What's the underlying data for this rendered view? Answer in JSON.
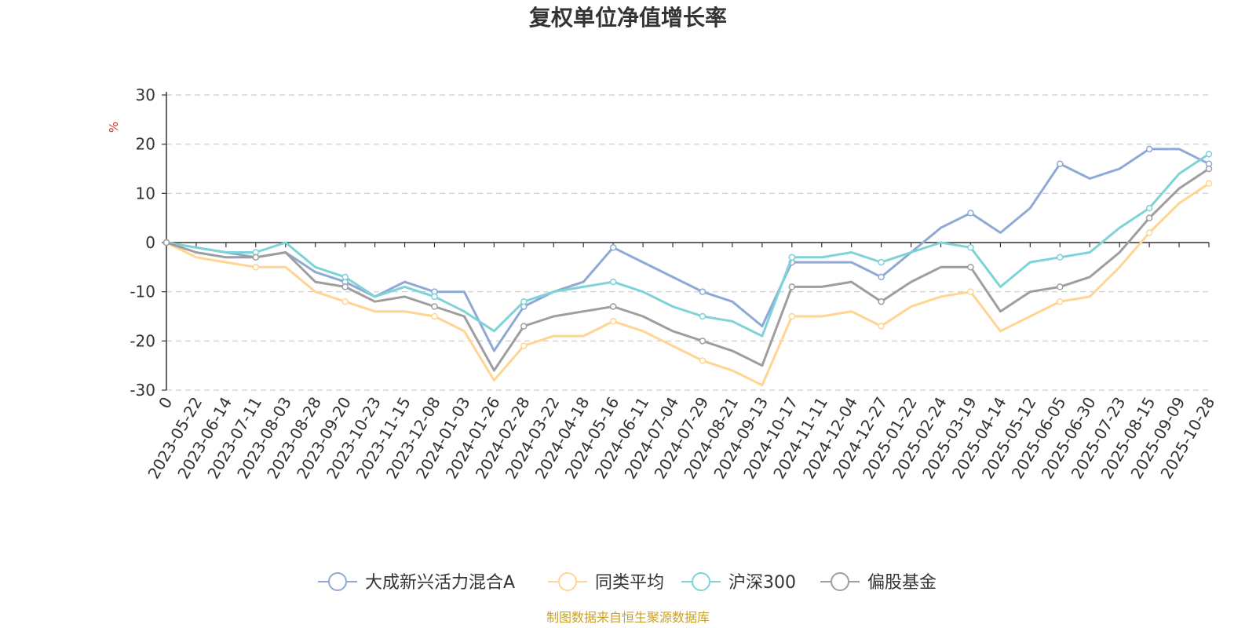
{
  "chart_data": {
    "type": "line",
    "title": "复权单位净值增长率",
    "ylabel": "%",
    "ylim": [
      -30,
      30
    ],
    "yticks": [
      30,
      20,
      10,
      0,
      -10,
      -20,
      -30
    ],
    "categories": [
      "0",
      "2023-05-22",
      "2023-06-14",
      "2023-07-11",
      "2023-08-03",
      "2023-08-28",
      "2023-09-20",
      "2023-10-23",
      "2023-11-15",
      "2023-12-08",
      "2024-01-03",
      "2024-01-26",
      "2024-02-28",
      "2024-03-22",
      "2024-04-18",
      "2024-05-16",
      "2024-06-11",
      "2024-07-04",
      "2024-07-29",
      "2024-08-21",
      "2024-09-13",
      "2024-10-17",
      "2024-11-11",
      "2024-12-04",
      "2024-12-27",
      "2025-01-22",
      "2025-02-24",
      "2025-03-19",
      "2025-04-14",
      "2025-05-12",
      "2025-06-05",
      "2025-06-30",
      "2025-07-23",
      "2025-08-15",
      "2025-09-09",
      "2025-10-28"
    ],
    "legend_position": "bottom-center",
    "grid": "dashed-horizontal",
    "series": [
      {
        "name": "大成新兴活力混合A",
        "color": "#8fa9d6",
        "values": [
          0,
          -1,
          -2,
          -3,
          -2,
          -6,
          -8,
          -11,
          -8,
          -10,
          -10,
          -22,
          -13,
          -10,
          -8,
          -1,
          -4,
          -7,
          -10,
          -12,
          -17,
          -4,
          -4,
          -4,
          -7,
          -2,
          3,
          6,
          2,
          7,
          16,
          13,
          15,
          19,
          19,
          16
        ]
      },
      {
        "name": "同类平均",
        "color": "#ffd591",
        "values": [
          0,
          -3,
          -4,
          -5,
          -5,
          -10,
          -12,
          -14,
          -14,
          -15,
          -18,
          -28,
          -21,
          -19,
          -19,
          -16,
          -18,
          -21,
          -24,
          -26,
          -29,
          -15,
          -15,
          -14,
          -17,
          -13,
          -11,
          -10,
          -18,
          -15,
          -12,
          -11,
          -5,
          2,
          8,
          12
        ]
      },
      {
        "name": "沪深300",
        "color": "#7ed3d6",
        "values": [
          0,
          -1,
          -2,
          -2,
          0,
          -5,
          -7,
          -11,
          -9,
          -11,
          -14,
          -18,
          -12,
          -10,
          -9,
          -8,
          -10,
          -13,
          -15,
          -16,
          -19,
          -3,
          -3,
          -2,
          -4,
          -2,
          0,
          -1,
          -9,
          -4,
          -3,
          -2,
          3,
          7,
          14,
          18
        ]
      },
      {
        "name": "偏股基金",
        "color": "#9e9e9e",
        "values": [
          0,
          -2,
          -3,
          -3,
          -2,
          -8,
          -9,
          -12,
          -11,
          -13,
          -15,
          -26,
          -17,
          -15,
          -14,
          -13,
          -15,
          -18,
          -20,
          -22,
          -25,
          -9,
          -9,
          -8,
          -12,
          -8,
          -5,
          -5,
          -14,
          -10,
          -9,
          -7,
          -2,
          5,
          11,
          15
        ]
      }
    ]
  },
  "source_note": "制图数据来自恒生聚源数据库",
  "source_color": "#c9a227",
  "unit_color": "#e0302a"
}
